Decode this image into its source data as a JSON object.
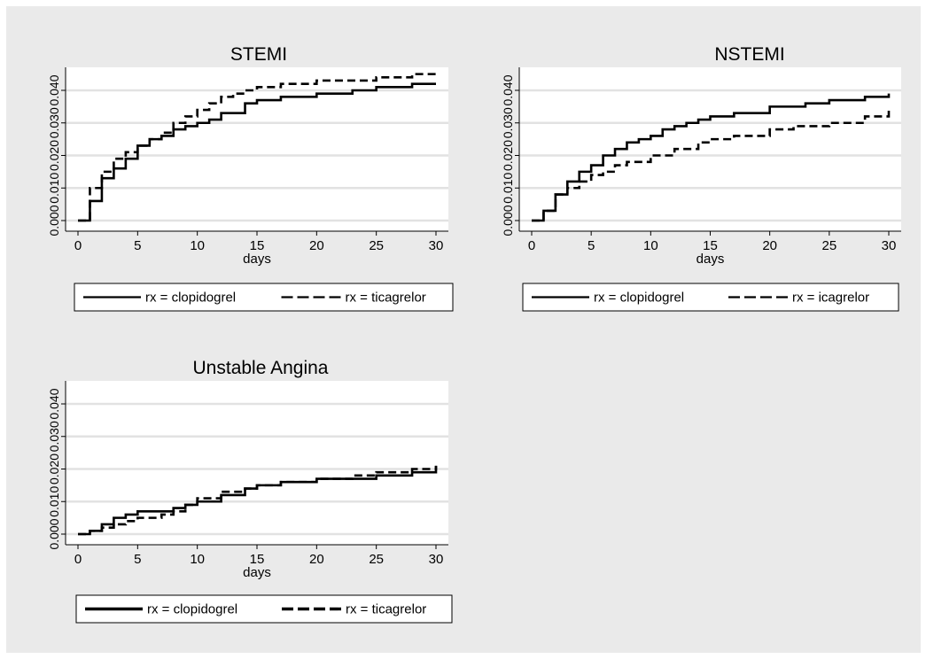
{
  "chart_data": [
    {
      "type": "line",
      "step": true,
      "title": "STEMI",
      "xlabel": "days",
      "ylabel": "",
      "xlim": [
        0,
        30
      ],
      "ylim": [
        0,
        0.04
      ],
      "xticks": [
        "0",
        "5",
        "10",
        "15",
        "20",
        "25",
        "30"
      ],
      "yticks": [
        "0.000",
        "0.010",
        "0.020",
        "0.030",
        "0.040"
      ],
      "grid": true,
      "legend_position": "bottom",
      "legend": [
        "rx = clopidogrel",
        "rx = ticagrelor"
      ],
      "series": [
        {
          "name": "rx = clopidogrel",
          "line": "solid",
          "x": [
            0,
            1,
            2,
            3,
            4,
            5,
            6,
            7,
            8,
            9,
            10,
            11,
            12,
            14,
            15,
            17,
            20,
            23,
            25,
            28,
            30
          ],
          "y": [
            0,
            0.006,
            0.013,
            0.016,
            0.019,
            0.023,
            0.025,
            0.026,
            0.028,
            0.029,
            0.03,
            0.031,
            0.033,
            0.036,
            0.037,
            0.038,
            0.039,
            0.04,
            0.041,
            0.042,
            0.042
          ]
        },
        {
          "name": "rx = ticagrelor",
          "line": "dashed",
          "x": [
            0,
            1,
            2,
            3,
            4,
            5,
            6,
            7,
            8,
            9,
            10,
            11,
            12,
            13,
            14,
            15,
            17,
            20,
            23,
            25,
            28,
            30
          ],
          "y": [
            0,
            0.01,
            0.015,
            0.019,
            0.021,
            0.023,
            0.025,
            0.027,
            0.03,
            0.032,
            0.034,
            0.036,
            0.038,
            0.039,
            0.04,
            0.041,
            0.042,
            0.043,
            0.043,
            0.044,
            0.045,
            0.045
          ]
        }
      ]
    },
    {
      "type": "line",
      "step": true,
      "title": "NSTEMI",
      "xlabel": "days",
      "ylabel": "",
      "xlim": [
        0,
        30
      ],
      "ylim": [
        0,
        0.04
      ],
      "xticks": [
        "0",
        "5",
        "10",
        "15",
        "20",
        "25",
        "30"
      ],
      "yticks": [
        "0.000",
        "0.010",
        "0.020",
        "0.030",
        "0.040"
      ],
      "grid": true,
      "legend_position": "bottom",
      "legend": [
        "rx = clopidogrel",
        "rx =  icagrelor"
      ],
      "series": [
        {
          "name": "rx = clopidogrel",
          "line": "solid",
          "x": [
            0,
            1,
            2,
            3,
            4,
            5,
            6,
            7,
            8,
            9,
            10,
            11,
            12,
            13,
            14,
            15,
            17,
            20,
            23,
            25,
            28,
            30
          ],
          "y": [
            0,
            0.003,
            0.008,
            0.012,
            0.015,
            0.017,
            0.02,
            0.022,
            0.024,
            0.025,
            0.026,
            0.028,
            0.029,
            0.03,
            0.031,
            0.032,
            0.033,
            0.035,
            0.036,
            0.037,
            0.038,
            0.039
          ]
        },
        {
          "name": "rx =  icagrelor",
          "line": "dashed",
          "x": [
            0,
            1,
            2,
            3,
            4,
            5,
            6,
            7,
            8,
            10,
            12,
            14,
            15,
            17,
            20,
            22,
            25,
            28,
            30
          ],
          "y": [
            0,
            0.003,
            0.008,
            0.01,
            0.012,
            0.014,
            0.015,
            0.017,
            0.018,
            0.02,
            0.022,
            0.024,
            0.025,
            0.026,
            0.028,
            0.029,
            0.03,
            0.032,
            0.034
          ]
        }
      ]
    },
    {
      "type": "line",
      "step": true,
      "title": "Unstable Angina",
      "xlabel": "days",
      "ylabel": "",
      "xlim": [
        0,
        30
      ],
      "ylim": [
        0,
        0.04
      ],
      "xticks": [
        "0",
        "5",
        "10",
        "15",
        "20",
        "25",
        "30"
      ],
      "yticks": [
        "0.000",
        "0.010",
        "0.020",
        "0.030",
        "0.040"
      ],
      "grid": true,
      "legend_position": "bottom",
      "legend": [
        "rx = clopidogrel",
        "rx = ticagrelor"
      ],
      "series": [
        {
          "name": "rx = clopidogrel",
          "line": "solid",
          "x": [
            0,
            1,
            2,
            3,
            4,
            5,
            7,
            8,
            9,
            10,
            12,
            14,
            15,
            17,
            20,
            23,
            25,
            28,
            30
          ],
          "y": [
            0,
            0.001,
            0.003,
            0.005,
            0.006,
            0.007,
            0.007,
            0.008,
            0.009,
            0.01,
            0.012,
            0.014,
            0.015,
            0.016,
            0.017,
            0.017,
            0.018,
            0.019,
            0.021
          ]
        },
        {
          "name": "rx = ticagrelor",
          "line": "dashed",
          "x": [
            0,
            1,
            2,
            3,
            4,
            5,
            7,
            8,
            9,
            10,
            12,
            14,
            15,
            17,
            20,
            23,
            25,
            28,
            30
          ],
          "y": [
            0,
            0.001,
            0.002,
            0.003,
            0.004,
            0.005,
            0.006,
            0.007,
            0.009,
            0.011,
            0.013,
            0.014,
            0.015,
            0.016,
            0.017,
            0.018,
            0.019,
            0.02,
            0.021
          ]
        }
      ]
    }
  ]
}
